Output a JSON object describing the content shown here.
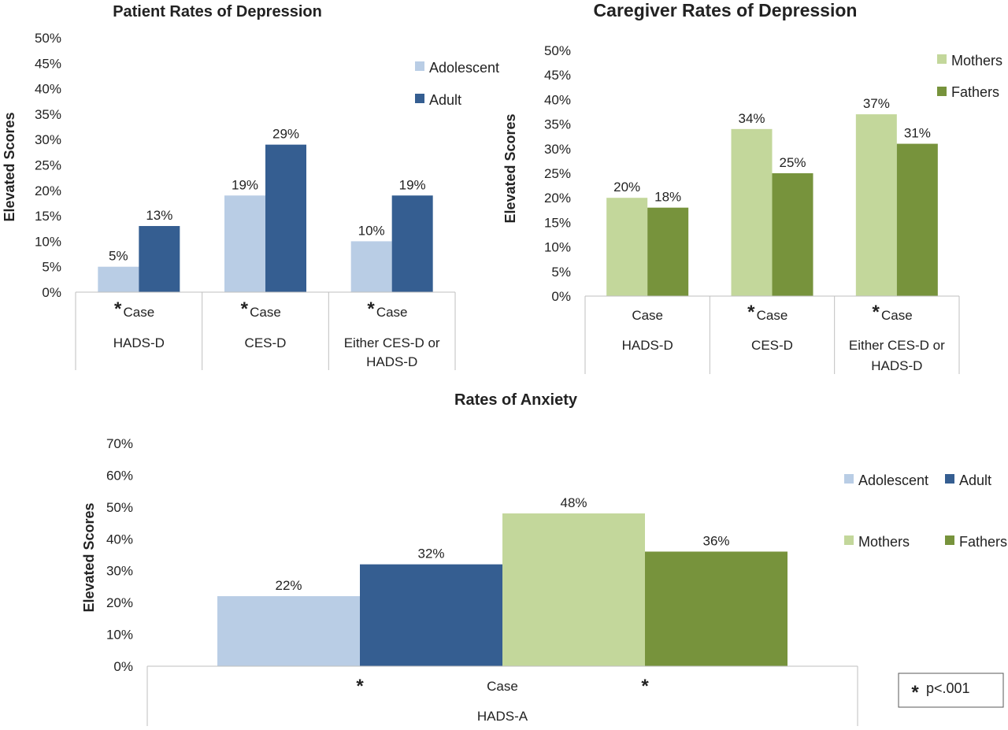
{
  "chart_data": [
    {
      "type": "bar",
      "title": "Patient Rates of Depression",
      "ylabel": "Elevated  Scores",
      "ylim": [
        0,
        50
      ],
      "yticks": [
        "0%",
        "5%",
        "10%",
        "15%",
        "20%",
        "25%",
        "30%",
        "35%",
        "40%",
        "45%",
        "50%"
      ],
      "categories": [
        {
          "sub": "Case",
          "group": [
            "HADS-D"
          ],
          "asterisk": "*"
        },
        {
          "sub": "Case",
          "group": [
            "CES-D"
          ],
          "asterisk": "*"
        },
        {
          "sub": "Case",
          "group": [
            "Either CES-D or",
            "HADS-D"
          ],
          "asterisk": "*"
        }
      ],
      "series": [
        {
          "name": "Adolescent",
          "color": "#b9cde5",
          "values": [
            5,
            19,
            10
          ],
          "labels": [
            "5%",
            "19%",
            "10%"
          ]
        },
        {
          "name": "Adult",
          "color": "#355e91",
          "values": [
            13,
            29,
            19
          ],
          "labels": [
            "13%",
            "29%",
            "19%"
          ]
        }
      ],
      "legend": "top-right"
    },
    {
      "type": "bar",
      "title": "Caregiver Rates of Depression",
      "ylabel": "Elevated Scores",
      "ylim": [
        0,
        50
      ],
      "yticks": [
        "0%",
        "5%",
        "10%",
        "15%",
        "20%",
        "25%",
        "30%",
        "35%",
        "40%",
        "45%",
        "50%"
      ],
      "categories": [
        {
          "sub": "Case",
          "group": [
            "HADS-D"
          ],
          "asterisk": ""
        },
        {
          "sub": "Case",
          "group": [
            "CES-D"
          ],
          "asterisk": "*"
        },
        {
          "sub": "Case",
          "group": [
            "Either CES-D or",
            "HADS-D"
          ],
          "asterisk": "*"
        }
      ],
      "series": [
        {
          "name": "Mothers",
          "color": "#c3d79b",
          "values": [
            20,
            34,
            37
          ],
          "labels": [
            "20%",
            "34%",
            "37%"
          ]
        },
        {
          "name": "Fathers",
          "color": "#77933c",
          "values": [
            18,
            25,
            31
          ],
          "labels": [
            "18%",
            "25%",
            "31%"
          ]
        }
      ],
      "legend": "top-right"
    },
    {
      "type": "bar",
      "title": "Rates of Anxiety",
      "ylabel": "Elevated Scores",
      "ylim": [
        0,
        70
      ],
      "yticks": [
        "0%",
        "10%",
        "20%",
        "30%",
        "40%",
        "50%",
        "60%",
        "70%"
      ],
      "categories": [
        {
          "sub": "Case",
          "group": [
            "HADS-A"
          ]
        }
      ],
      "asterisks": [
        "*",
        "*"
      ],
      "series": [
        {
          "name": "Adolescent",
          "color": "#b9cde5",
          "values": [
            22
          ],
          "labels": [
            "22%"
          ]
        },
        {
          "name": "Adult",
          "color": "#355e91",
          "values": [
            32
          ],
          "labels": [
            "32%"
          ]
        },
        {
          "name": "Mothers",
          "color": "#c3d79b",
          "values": [
            48
          ],
          "labels": [
            "48%"
          ]
        },
        {
          "name": "Fathers",
          "color": "#77933c",
          "values": [
            36
          ],
          "labels": [
            "36%"
          ]
        }
      ],
      "legend": "right"
    }
  ],
  "footnote": {
    "symbol": "*",
    "text": "p<.001"
  }
}
